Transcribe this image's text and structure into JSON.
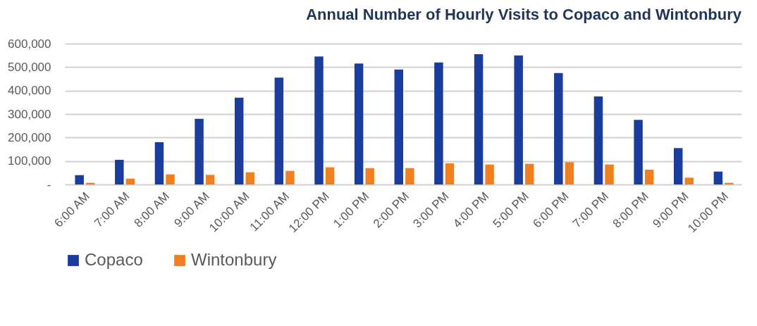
{
  "chart_data": {
    "type": "bar",
    "title": "Annual Number of Hourly Visits to Copaco and Wintonbury",
    "categories": [
      "6:00 AM",
      "7:00 AM",
      "8:00 AM",
      "9:00 AM",
      "10:00 AM",
      "11:00 AM",
      "12:00 PM",
      "1:00 PM",
      "2:00 PM",
      "3:00 PM",
      "4:00 PM",
      "5:00 PM",
      "6:00 PM",
      "7:00 PM",
      "8:00 PM",
      "9:00 PM",
      "10:00 PM"
    ],
    "series": [
      {
        "name": "Copaco",
        "color": "#1a3c9c",
        "values": [
          40000,
          105000,
          180000,
          280000,
          370000,
          455000,
          545000,
          515000,
          490000,
          520000,
          555000,
          550000,
          475000,
          375000,
          275000,
          155000,
          55000
        ]
      },
      {
        "name": "Wintonbury",
        "color": "#f07f20",
        "values": [
          7000,
          25000,
          43000,
          41000,
          52000,
          58000,
          73000,
          70000,
          70000,
          90000,
          85000,
          88000,
          95000,
          85000,
          63000,
          29000,
          7000
        ]
      }
    ],
    "ylim": [
      0,
      600000
    ],
    "yticks": [
      {
        "value": 0,
        "label": "-"
      },
      {
        "value": 100000,
        "label": "100,000"
      },
      {
        "value": 200000,
        "label": "200,000"
      },
      {
        "value": 300000,
        "label": "300,000"
      },
      {
        "value": 400000,
        "label": "400,000"
      },
      {
        "value": 500000,
        "label": "500,000"
      },
      {
        "value": 600000,
        "label": "600,000"
      }
    ],
    "grid": true,
    "legend": "bottom"
  }
}
